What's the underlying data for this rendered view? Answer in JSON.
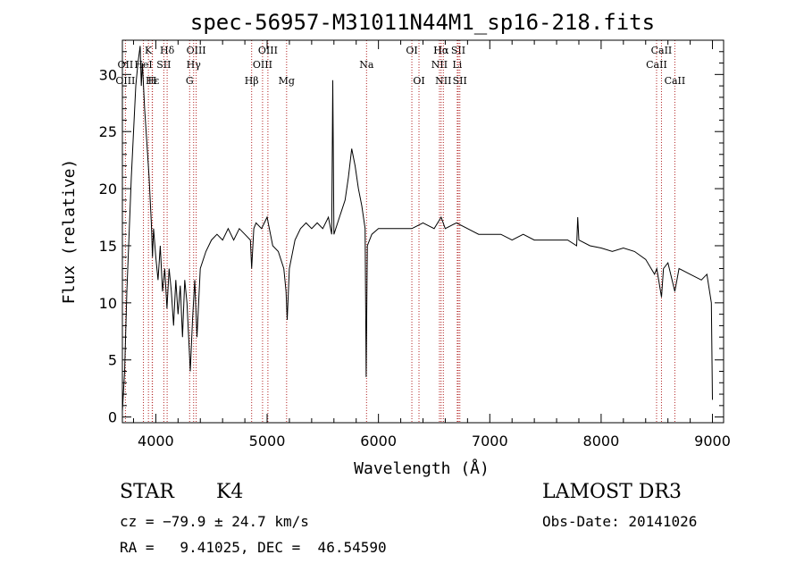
{
  "chart_data": {
    "type": "line",
    "title": "spec-56957-M31011N44M1_sp16-218.fits",
    "xlabel": "Wavelength (Å)",
    "ylabel": "Flux (relative)",
    "xlim": [
      3700,
      9100
    ],
    "ylim": [
      -0.5,
      33
    ],
    "x_ticks": [
      4000,
      5000,
      6000,
      7000,
      8000,
      9000
    ],
    "y_ticks": [
      0,
      5,
      10,
      15,
      20,
      25,
      30
    ],
    "grid": false,
    "line_color": "#000000",
    "marker_color": "#b22222",
    "series": [
      {
        "points": [
          [
            3700,
            0.5
          ],
          [
            3720,
            4
          ],
          [
            3740,
            11
          ],
          [
            3760,
            16
          ],
          [
            3780,
            21
          ],
          [
            3800,
            25
          ],
          [
            3820,
            29
          ],
          [
            3840,
            31
          ],
          [
            3860,
            32.5
          ],
          [
            3870,
            29
          ],
          [
            3880,
            31
          ],
          [
            3900,
            27
          ],
          [
            3920,
            24
          ],
          [
            3940,
            21
          ],
          [
            3960,
            17
          ],
          [
            3970,
            14
          ],
          [
            3980,
            16.5
          ],
          [
            4000,
            14
          ],
          [
            4020,
            12
          ],
          [
            4040,
            15
          ],
          [
            4060,
            11
          ],
          [
            4080,
            13
          ],
          [
            4100,
            9.5
          ],
          [
            4120,
            13
          ],
          [
            4140,
            11
          ],
          [
            4160,
            8
          ],
          [
            4180,
            12
          ],
          [
            4200,
            9
          ],
          [
            4220,
            11.5
          ],
          [
            4240,
            7
          ],
          [
            4260,
            12
          ],
          [
            4280,
            10
          ],
          [
            4300,
            6
          ],
          [
            4310,
            4
          ],
          [
            4330,
            8.5
          ],
          [
            4350,
            12
          ],
          [
            4370,
            7
          ],
          [
            4400,
            13
          ],
          [
            4450,
            14.5
          ],
          [
            4500,
            15.5
          ],
          [
            4550,
            16
          ],
          [
            4600,
            15.5
          ],
          [
            4650,
            16.5
          ],
          [
            4700,
            15.5
          ],
          [
            4750,
            16.5
          ],
          [
            4800,
            16
          ],
          [
            4850,
            15.5
          ],
          [
            4861,
            13
          ],
          [
            4880,
            16.5
          ],
          [
            4900,
            17
          ],
          [
            4950,
            16.5
          ],
          [
            5000,
            17.5
          ],
          [
            5050,
            15
          ],
          [
            5100,
            14.5
          ],
          [
            5150,
            13
          ],
          [
            5170,
            11
          ],
          [
            5180,
            8.5
          ],
          [
            5200,
            13
          ],
          [
            5250,
            15.5
          ],
          [
            5300,
            16.5
          ],
          [
            5350,
            17
          ],
          [
            5400,
            16.5
          ],
          [
            5450,
            17
          ],
          [
            5500,
            16.5
          ],
          [
            5550,
            17.5
          ],
          [
            5580,
            16
          ],
          [
            5590,
            29.5
          ],
          [
            5600,
            16
          ],
          [
            5650,
            17.5
          ],
          [
            5700,
            19
          ],
          [
            5730,
            21
          ],
          [
            5760,
            23.5
          ],
          [
            5790,
            22
          ],
          [
            5820,
            20
          ],
          [
            5850,
            18.5
          ],
          [
            5880,
            16.5
          ],
          [
            5890,
            3.5
          ],
          [
            5900,
            15
          ],
          [
            5940,
            16
          ],
          [
            6000,
            16.5
          ],
          [
            6100,
            16.5
          ],
          [
            6200,
            16.5
          ],
          [
            6300,
            16.5
          ],
          [
            6400,
            17
          ],
          [
            6500,
            16.5
          ],
          [
            6563,
            17.5
          ],
          [
            6600,
            16.5
          ],
          [
            6700,
            17
          ],
          [
            6800,
            16.5
          ],
          [
            6900,
            16
          ],
          [
            7000,
            16
          ],
          [
            7100,
            16
          ],
          [
            7200,
            15.5
          ],
          [
            7300,
            16
          ],
          [
            7400,
            15.5
          ],
          [
            7500,
            15.5
          ],
          [
            7600,
            15.5
          ],
          [
            7700,
            15.5
          ],
          [
            7780,
            15
          ],
          [
            7790,
            17.5
          ],
          [
            7800,
            15.5
          ],
          [
            7900,
            15
          ],
          [
            8000,
            14.8
          ],
          [
            8100,
            14.5
          ],
          [
            8200,
            14.8
          ],
          [
            8300,
            14.5
          ],
          [
            8400,
            13.8
          ],
          [
            8480,
            12.5
          ],
          [
            8500,
            13
          ],
          [
            8542,
            10.5
          ],
          [
            8560,
            13
          ],
          [
            8600,
            13.5
          ],
          [
            8662,
            11
          ],
          [
            8700,
            13
          ],
          [
            8800,
            12.5
          ],
          [
            8900,
            12
          ],
          [
            8950,
            12.5
          ],
          [
            8990,
            10
          ],
          [
            9000,
            1.5
          ]
        ]
      }
    ],
    "line_markers": [
      {
        "label": "Hα",
        "wavelength": 6563,
        "row": 0
      },
      {
        "label": "K",
        "wavelength": 3934,
        "row": 0
      },
      {
        "label": "Hδ",
        "wavelength": 4102,
        "row": 0
      },
      {
        "label": "OIII",
        "wavelength": 4363,
        "row": 0
      },
      {
        "label": "OIII",
        "wavelength": 5007,
        "row": 0
      },
      {
        "label": "OI",
        "wavelength": 6300,
        "row": 0
      },
      {
        "label": "Hα",
        "wavelength": 6563,
        "row": 0
      },
      {
        "label": "SII",
        "wavelength": 6717,
        "row": 0
      },
      {
        "label": "CaII",
        "wavelength": 8542,
        "row": 0
      },
      {
        "label": "OII",
        "wavelength": 3727,
        "row": 1
      },
      {
        "label": "HeI",
        "wavelength": 3889,
        "row": 1
      },
      {
        "label": "SII",
        "wavelength": 4072,
        "row": 1
      },
      {
        "label": "Hγ",
        "wavelength": 4340,
        "row": 1
      },
      {
        "label": "OIII",
        "wavelength": 4959,
        "row": 1
      },
      {
        "label": "Na",
        "wavelength": 5893,
        "row": 1
      },
      {
        "label": "NII",
        "wavelength": 6548,
        "row": 1
      },
      {
        "label": "Li",
        "wavelength": 6708,
        "row": 1
      },
      {
        "label": "CaII",
        "wavelength": 8498,
        "row": 1
      },
      {
        "label": "OIII",
        "wavelength": 3727,
        "row": 2
      },
      {
        "label": "Hε",
        "wavelength": 3970,
        "row": 2
      },
      {
        "label": "H",
        "wavelength": 3968,
        "row": 2
      },
      {
        "label": "G",
        "wavelength": 4304,
        "row": 2
      },
      {
        "label": "Hβ",
        "wavelength": 4861,
        "row": 2
      },
      {
        "label": "Mg",
        "wavelength": 5175,
        "row": 2
      },
      {
        "label": "OI",
        "wavelength": 6364,
        "row": 2
      },
      {
        "label": "NII",
        "wavelength": 6583,
        "row": 2
      },
      {
        "label": "SII",
        "wavelength": 6731,
        "row": 2
      },
      {
        "label": "CaII",
        "wavelength": 8662,
        "row": 2
      }
    ]
  },
  "footer": {
    "class_label": "STAR",
    "subclass": "K4",
    "survey": "LAMOST DR3",
    "cz": "cz = −79.9 ± 24.7 km/s",
    "obs_date": "Obs-Date: 20141026",
    "coords": "RA =   9.41025, DEC =  46.54590"
  }
}
